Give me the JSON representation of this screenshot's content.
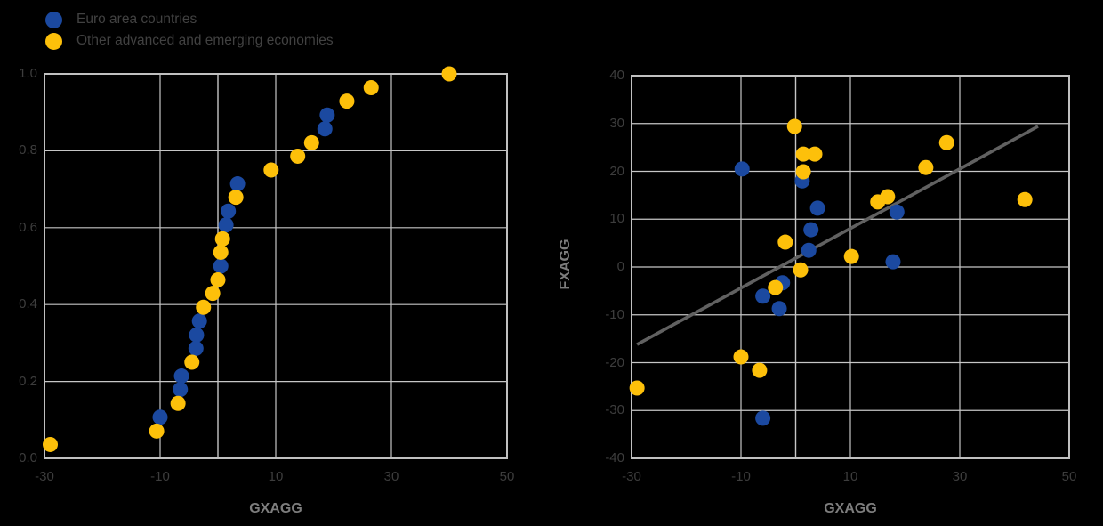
{
  "legend": {
    "items": [
      {
        "label": "Euro area countries",
        "color": "#1b49a0"
      },
      {
        "label": "Other advanced and emerging economies",
        "color": "#fdc00a"
      }
    ]
  },
  "colors": {
    "background": "#000000",
    "euro_area_blue": "#1b49a0",
    "other_economies_yellow": "#fdc00a",
    "gridline": "#c6c6c6",
    "spine": "#c0c0c0",
    "trend_line": "#616161",
    "axis_title_gray": "#7d7d7d",
    "tick_label": "#3d3d3d"
  },
  "chart_data": [
    {
      "id": "left-ecdf",
      "type": "scatter",
      "title": "",
      "xlabel": "GXAGG",
      "ylabel": "",
      "xlim": [
        -30,
        50
      ],
      "ylim": [
        0.0,
        1.0
      ],
      "xtick_values": [
        -30,
        -10,
        10,
        30,
        50
      ],
      "xtick_labels": [
        "-30",
        "-10",
        "10",
        "30",
        "50"
      ],
      "ytick_values": [
        1.0,
        0.8,
        0.6,
        0.4,
        0.2,
        0.0
      ],
      "ytick_labels": [
        "1.0",
        "0.8",
        "0.6",
        "0.4",
        "0.2",
        "0.0"
      ],
      "grid": true,
      "zero_vline": true,
      "legend_position": "outside-top-left",
      "series": [
        {
          "name": "Euro area countries",
          "color": "#1b49a0",
          "points": [
            [
              -10.0,
              0.107
            ],
            [
              -6.5,
              0.179
            ],
            [
              -6.3,
              0.214
            ],
            [
              -3.8,
              0.286
            ],
            [
              -3.7,
              0.321
            ],
            [
              -3.2,
              0.357
            ],
            [
              0.5,
              0.5
            ],
            [
              1.4,
              0.607
            ],
            [
              1.8,
              0.643
            ],
            [
              3.4,
              0.714
            ],
            [
              18.5,
              0.857
            ],
            [
              18.9,
              0.893
            ]
          ]
        },
        {
          "name": "Other advanced and emerging economies",
          "color": "#fdc00a",
          "points": [
            [
              -29.0,
              0.036
            ],
            [
              -10.6,
              0.071
            ],
            [
              -6.9,
              0.143
            ],
            [
              -4.5,
              0.25
            ],
            [
              -2.5,
              0.393
            ],
            [
              -0.9,
              0.429
            ],
            [
              0.0,
              0.464
            ],
            [
              0.5,
              0.536
            ],
            [
              0.8,
              0.571
            ],
            [
              3.1,
              0.679
            ],
            [
              9.2,
              0.75
            ],
            [
              13.8,
              0.786
            ],
            [
              16.2,
              0.821
            ],
            [
              22.3,
              0.929
            ],
            [
              26.5,
              0.964
            ],
            [
              40.0,
              1.0
            ]
          ]
        }
      ]
    },
    {
      "id": "right-scatter",
      "type": "scatter",
      "title": "",
      "xlabel": "GXAGG",
      "ylabel": "FXAGG",
      "xlim": [
        -30,
        50
      ],
      "ylim": [
        -40,
        40
      ],
      "xtick_values": [
        -30,
        -10,
        10,
        30,
        50
      ],
      "xtick_labels": [
        "-30",
        "-10",
        "10",
        "30",
        "50"
      ],
      "ytick_values": [
        40,
        30,
        20,
        10,
        0,
        -10,
        -20,
        -30,
        -40
      ],
      "ytick_labels": [
        "40",
        "30",
        "20",
        "10",
        "0",
        "-10",
        "-20",
        "-30",
        "-40"
      ],
      "grid": true,
      "zero_vline": true,
      "trend_line": {
        "x1": -29.0,
        "y1": -16.2,
        "x2": 44.3,
        "y2": 29.4
      },
      "series": [
        {
          "name": "Euro area countries",
          "color": "#1b49a0",
          "points": [
            [
              -9.8,
              20.5
            ],
            [
              1.2,
              18.0
            ],
            [
              4.0,
              12.3
            ],
            [
              18.5,
              11.5
            ],
            [
              2.8,
              7.8
            ],
            [
              2.4,
              3.5
            ],
            [
              17.8,
              1.1
            ],
            [
              -2.4,
              -3.3
            ],
            [
              -6.0,
              -6.1
            ],
            [
              -3.0,
              -8.7
            ],
            [
              -6.0,
              -31.6
            ]
          ]
        },
        {
          "name": "Other advanced and emerging economies",
          "color": "#fdc00a",
          "points": [
            [
              -0.2,
              29.4
            ],
            [
              1.4,
              23.6
            ],
            [
              3.5,
              23.6
            ],
            [
              1.4,
              19.9
            ],
            [
              23.8,
              20.8
            ],
            [
              27.6,
              26.0
            ],
            [
              41.9,
              14.1
            ],
            [
              16.8,
              14.7
            ],
            [
              15.0,
              13.6
            ],
            [
              10.2,
              2.2
            ],
            [
              -1.9,
              5.2
            ],
            [
              0.9,
              -0.6
            ],
            [
              -3.7,
              -4.3
            ],
            [
              -10.0,
              -18.8
            ],
            [
              -6.6,
              -21.6
            ],
            [
              -29.0,
              -25.3
            ]
          ]
        }
      ]
    }
  ]
}
